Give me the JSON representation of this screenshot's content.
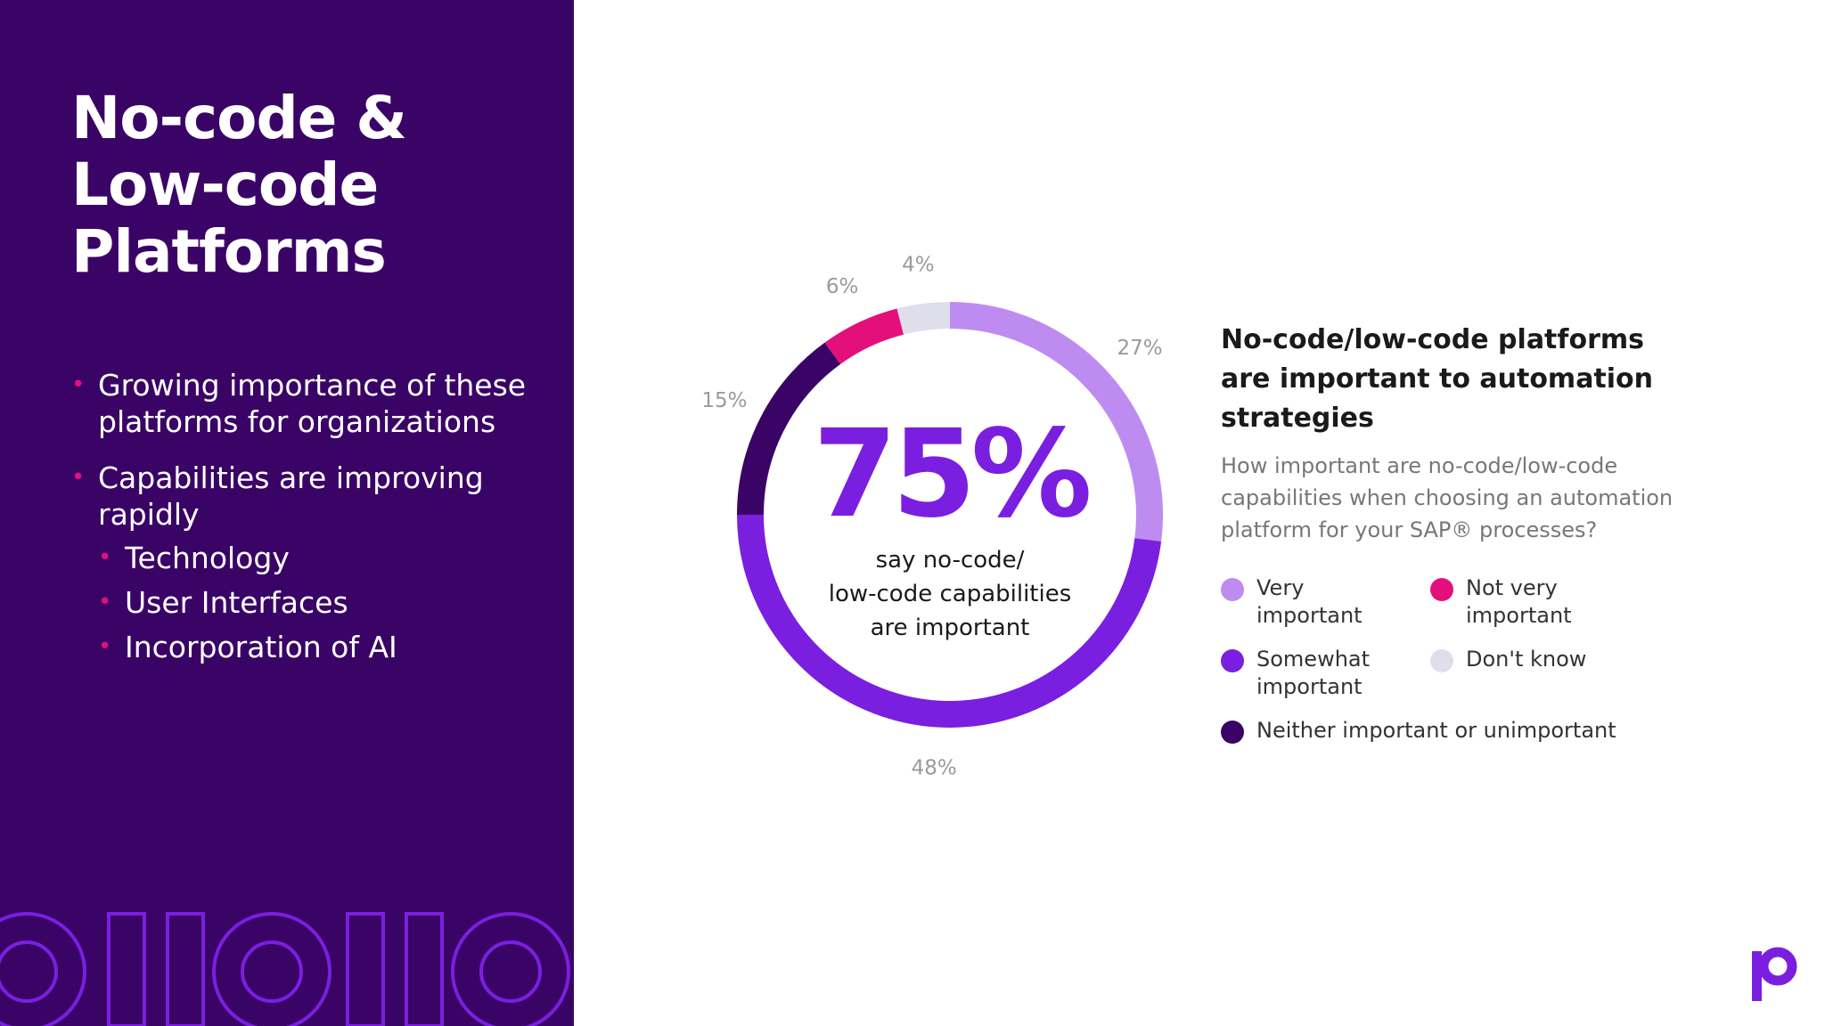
{
  "title_lines": [
    "No-code &",
    "Low-code",
    "Platforms"
  ],
  "bullets": [
    {
      "text": "Growing importance of these platforms for organizations"
    },
    {
      "text": "Capabilities are improving rapidly"
    }
  ],
  "sub_bullets": [
    "Technology",
    "User Interfaces",
    "Incorporation of AI"
  ],
  "chart": {
    "center_value": "75%",
    "center_text_lines": [
      "say no-code/",
      "low-code capabilities",
      "are important"
    ],
    "headline_lines": [
      "No-code/low-code platforms",
      "are important to automation",
      "strategies"
    ],
    "question_lines": [
      "How important are no-code/low-code",
      "capabilities when choosing an automation",
      "platform for your SAP® processes?"
    ]
  },
  "chart_data": {
    "type": "pie",
    "style": "donut",
    "categories": [
      "Very important",
      "Somewhat important",
      "Neither important or unimportant",
      "Not very important",
      "Don't know"
    ],
    "values": [
      27,
      48,
      15,
      6,
      4
    ],
    "value_labels": [
      "27%",
      "48%",
      "15%",
      "6%",
      "4%"
    ],
    "colors": [
      "#be8cf0",
      "#7a1fe0",
      "#3a0466",
      "#e3107b",
      "#dedfea"
    ],
    "legend": [
      {
        "label_lines": [
          "Very",
          "important"
        ],
        "color": "#be8cf0"
      },
      {
        "label_lines": [
          "Not very",
          "important"
        ],
        "color": "#e3107b"
      },
      {
        "label_lines": [
          "Somewhat",
          "important"
        ],
        "color": "#7a1fe0"
      },
      {
        "label_lines": [
          "Don't know"
        ],
        "color": "#dedfea"
      },
      {
        "label_lines": [
          "Neither important or unimportant"
        ],
        "color": "#3a0466"
      }
    ]
  },
  "colors": {
    "panel": "#3a0466",
    "accent": "#7a1fe0",
    "bullet": "#e3107b"
  }
}
